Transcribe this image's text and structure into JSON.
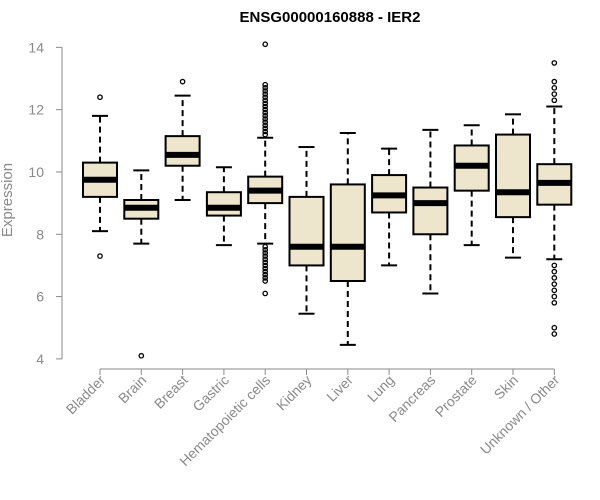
{
  "chart_data": {
    "type": "boxplot",
    "title": "ENSG00000160888 - IER2",
    "xlabel": "",
    "ylabel": "Expression",
    "ylim": [
      3.9,
      14.3
    ],
    "yticks": [
      4,
      6,
      8,
      10,
      12,
      14
    ],
    "box_fill": "#ede6cc",
    "axis_color": "#8a8a8a",
    "categories": [
      "Bladder",
      "Brain",
      "Breast",
      "Gastric",
      "Hematopoietic cells",
      "Kidney",
      "Liver",
      "Lung",
      "Pancreas",
      "Prostate",
      "Skin",
      "Unknown / Other"
    ],
    "boxes": [
      {
        "name": "Bladder",
        "whisker_low": 8.1,
        "q1": 9.2,
        "median": 9.75,
        "q3": 10.3,
        "whisker_high": 11.8,
        "outliers": [
          7.3,
          12.4
        ]
      },
      {
        "name": "Brain",
        "whisker_low": 7.7,
        "q1": 8.5,
        "median": 8.85,
        "q3": 9.1,
        "whisker_high": 10.05,
        "outliers": [
          4.1
        ]
      },
      {
        "name": "Breast",
        "whisker_low": 9.1,
        "q1": 10.2,
        "median": 10.55,
        "q3": 11.15,
        "whisker_high": 12.45,
        "outliers": [
          12.9
        ]
      },
      {
        "name": "Gastric",
        "whisker_low": 7.65,
        "q1": 8.6,
        "median": 8.85,
        "q3": 9.35,
        "whisker_high": 10.15,
        "outliers": []
      },
      {
        "name": "Hematopoietic cells",
        "whisker_low": 7.7,
        "q1": 9.0,
        "median": 9.4,
        "q3": 9.85,
        "whisker_high": 11.1,
        "outliers": [
          14.1,
          12.8,
          12.7,
          12.6,
          12.5,
          12.4,
          12.3,
          12.2,
          12.1,
          12.0,
          11.9,
          11.8,
          11.7,
          11.6,
          11.5,
          11.4,
          11.3,
          11.2,
          7.6,
          7.5,
          7.4,
          7.3,
          7.2,
          7.1,
          7.0,
          6.9,
          6.8,
          6.7,
          6.6,
          6.5,
          6.1
        ]
      },
      {
        "name": "Kidney",
        "whisker_low": 5.45,
        "q1": 7.0,
        "median": 7.6,
        "q3": 9.2,
        "whisker_high": 10.8,
        "outliers": []
      },
      {
        "name": "Liver",
        "whisker_low": 4.45,
        "q1": 6.5,
        "median": 7.6,
        "q3": 9.6,
        "whisker_high": 11.25,
        "outliers": []
      },
      {
        "name": "Lung",
        "whisker_low": 7.0,
        "q1": 8.7,
        "median": 9.25,
        "q3": 9.9,
        "whisker_high": 10.75,
        "outliers": []
      },
      {
        "name": "Pancreas",
        "whisker_low": 6.1,
        "q1": 8.0,
        "median": 9.0,
        "q3": 9.5,
        "whisker_high": 11.35,
        "outliers": []
      },
      {
        "name": "Prostate",
        "whisker_low": 7.65,
        "q1": 9.4,
        "median": 10.2,
        "q3": 10.85,
        "whisker_high": 11.5,
        "outliers": []
      },
      {
        "name": "Skin",
        "whisker_low": 7.25,
        "q1": 8.55,
        "median": 9.35,
        "q3": 11.2,
        "whisker_high": 11.85,
        "outliers": []
      },
      {
        "name": "Unknown / Other",
        "whisker_low": 7.2,
        "q1": 8.95,
        "median": 9.65,
        "q3": 10.25,
        "whisker_high": 12.1,
        "outliers": [
          13.5,
          12.9,
          12.7,
          12.5,
          12.3,
          7.0,
          6.8,
          6.6,
          6.4,
          6.2,
          6.0,
          5.8,
          5.0,
          4.8
        ]
      }
    ]
  }
}
